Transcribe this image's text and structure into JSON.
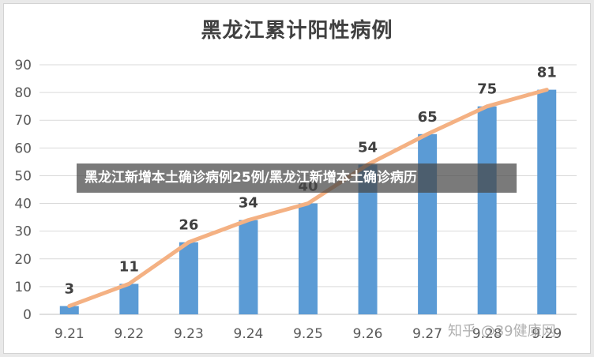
{
  "chart_data": {
    "type": "bar",
    "title": "黑龙江累计阳性病例",
    "categories": [
      "9.21",
      "9.22",
      "9.23",
      "9.24",
      "9.25",
      "9.26",
      "9.27",
      "9.28",
      "9.29"
    ],
    "series": [
      {
        "type": "bar",
        "values": [
          3,
          11,
          26,
          34,
          40,
          54,
          65,
          75,
          81
        ]
      },
      {
        "type": "line",
        "values": [
          3,
          11,
          26,
          34,
          40,
          54,
          65,
          75,
          81
        ]
      }
    ],
    "data_labels": [
      "3",
      "11",
      "26",
      "34",
      "40",
      "54",
      "65",
      "75",
      "81"
    ],
    "ylim": [
      0,
      90
    ],
    "yticks": [
      "0",
      "10",
      "20",
      "30",
      "40",
      "50",
      "60",
      "70",
      "80",
      "90"
    ],
    "grid": true,
    "colors": {
      "bar": "#5b9bd5",
      "line": "#f4b183"
    }
  },
  "overlay": {
    "caption": "黑龙江新增本土确诊病例25例/黑龙江新增本土确诊病历"
  },
  "watermark": {
    "text": "知乎 @39健康网"
  }
}
